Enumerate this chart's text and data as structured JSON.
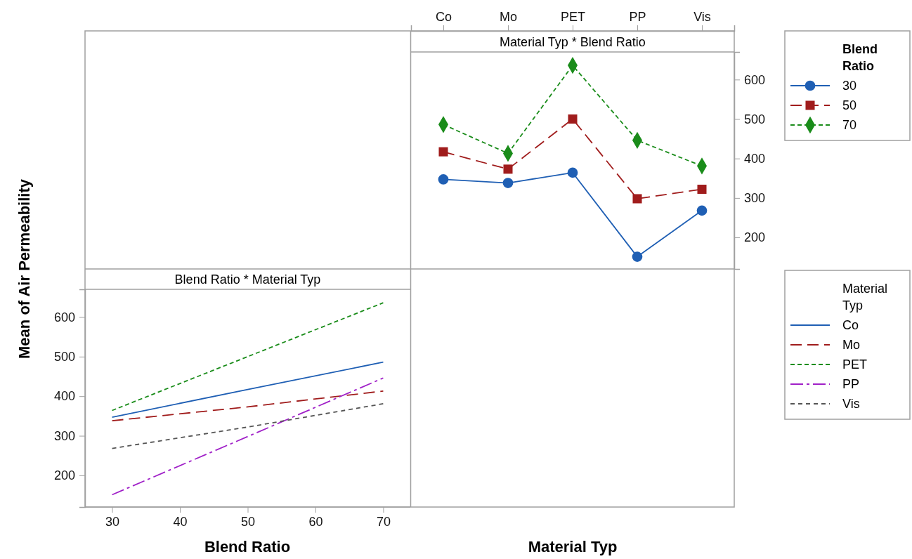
{
  "chart_data": [
    {
      "type": "line",
      "title": "Material Typ * Blend Ratio",
      "xlabel": "Material Typ",
      "categories": [
        "Co",
        "Mo",
        "PET",
        "PP",
        "Vis"
      ],
      "ylim": [
        120,
        670
      ],
      "yticks": [
        200,
        300,
        400,
        500,
        600
      ],
      "legend": "right",
      "legend_title": "Blend Ratio",
      "grid": false,
      "series": [
        {
          "name": "30",
          "color": "#1f5fb4",
          "values": [
            347,
            338,
            364,
            151,
            268
          ],
          "marker": "circle",
          "line_style": "solid"
        },
        {
          "name": "50",
          "color": "#a01c1c",
          "values": [
            417,
            373,
            500,
            298,
            322
          ],
          "marker": "square",
          "line_style": "dashed"
        },
        {
          "name": "70",
          "color": "#1a8c1a",
          "values": [
            486,
            413,
            636,
            446,
            381
          ],
          "marker": "diamond",
          "line_style": "dashed"
        }
      ]
    },
    {
      "type": "line",
      "title": "Blend Ratio * Material Typ",
      "xlabel": "Blend Ratio",
      "ylabel": "Mean of Air Permeability",
      "x": [
        30,
        50,
        70
      ],
      "xlim": [
        26,
        74
      ],
      "xticks": [
        30,
        40,
        50,
        60,
        70
      ],
      "ylim": [
        120,
        670
      ],
      "yticks": [
        200,
        300,
        400,
        500,
        600
      ],
      "legend": "right",
      "legend_title": "Material Typ",
      "grid": false,
      "marker": "none",
      "series": [
        {
          "name": "Co",
          "color": "#1f5fb4",
          "values": [
            347,
            417,
            486
          ],
          "line_style": "solid"
        },
        {
          "name": "Mo",
          "color": "#a01c1c",
          "values": [
            338,
            373,
            413
          ],
          "line_style": "dashed"
        },
        {
          "name": "PET",
          "color": "#1a8c1a",
          "values": [
            364,
            500,
            636
          ],
          "line_style": "dashed"
        },
        {
          "name": "PP",
          "color": "#a020c8",
          "values": [
            151,
            298,
            446
          ],
          "line_style": "dashed"
        },
        {
          "name": "Vis",
          "color": "#555555",
          "values": [
            268,
            322,
            381
          ],
          "line_style": "dotted"
        }
      ]
    }
  ]
}
